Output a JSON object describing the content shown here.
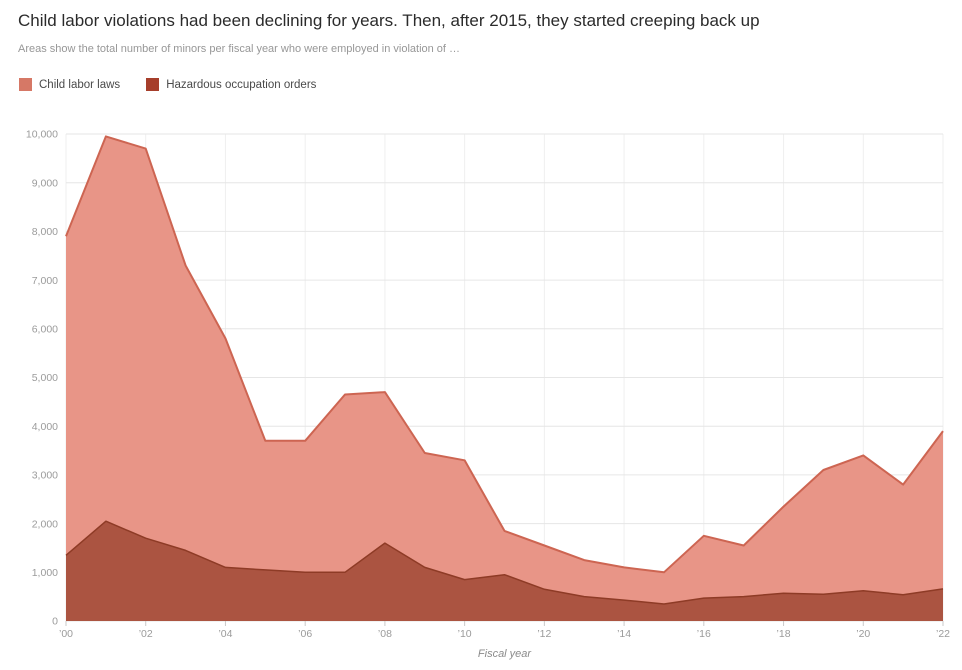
{
  "header": {
    "title": "Child labor violations had been declining for years. Then, after 2015, they started creeping back up",
    "subtitle": "Areas show the total number of minors per fiscal year who were employed in violation of …"
  },
  "legend": {
    "items": [
      {
        "label": "Child labor laws",
        "color": "#d67866"
      },
      {
        "label": "Hazardous occupation orders",
        "color": "#a63e2b"
      }
    ]
  },
  "chart_data": {
    "type": "area",
    "title": "Child labor violations had been declining for years. Then, after 2015, they started creeping back up",
    "subtitle": "Areas show the total number of minors per fiscal year who were employed in violation of …",
    "x": [
      2000,
      2001,
      2002,
      2003,
      2004,
      2005,
      2006,
      2007,
      2008,
      2009,
      2010,
      2011,
      2012,
      2013,
      2014,
      2015,
      2016,
      2017,
      2018,
      2019,
      2020,
      2021,
      2022
    ],
    "series": [
      {
        "name": "Child labor laws",
        "values": [
          7900,
          9950,
          9700,
          7300,
          5800,
          3700,
          3700,
          4650,
          4700,
          3450,
          3300,
          1850,
          1550,
          1250,
          1100,
          1000,
          1750,
          1550,
          2350,
          3100,
          3400,
          2800,
          3900
        ],
        "fill": "#e89587",
        "stroke": "#cd6552"
      },
      {
        "name": "Hazardous occupation orders",
        "values": [
          1350,
          2050,
          1700,
          1450,
          1100,
          1050,
          1000,
          1000,
          1600,
          1100,
          850,
          950,
          650,
          500,
          430,
          350,
          470,
          500,
          570,
          550,
          620,
          540,
          660
        ],
        "fill": "#ab5441",
        "stroke": "#8e3b26"
      }
    ],
    "xlabel": "Fiscal year",
    "ylabel": "",
    "ylim": [
      0,
      10000
    ],
    "grid": true,
    "legend_position": "top",
    "overlap_mode": "overlaid (not stacked)",
    "y_ticks": [
      {
        "v": 0,
        "label": "0"
      },
      {
        "v": 1000,
        "label": "1,000"
      },
      {
        "v": 2000,
        "label": "2,000"
      },
      {
        "v": 3000,
        "label": "3,000"
      },
      {
        "v": 4000,
        "label": "4,000"
      },
      {
        "v": 5000,
        "label": "5,000"
      },
      {
        "v": 6000,
        "label": "6,000"
      },
      {
        "v": 7000,
        "label": "7,000"
      },
      {
        "v": 8000,
        "label": "8,000"
      },
      {
        "v": 9000,
        "label": "9,000"
      },
      {
        "v": 10000,
        "label": "10,000"
      }
    ],
    "x_ticks": [
      {
        "year": 2000,
        "label": "’00"
      },
      {
        "year": 2002,
        "label": "’02"
      },
      {
        "year": 2004,
        "label": "’04"
      },
      {
        "year": 2006,
        "label": "’06"
      },
      {
        "year": 2008,
        "label": "’08"
      },
      {
        "year": 2010,
        "label": "’10"
      },
      {
        "year": 2012,
        "label": "’12"
      },
      {
        "year": 2014,
        "label": "’14"
      },
      {
        "year": 2016,
        "label": "’16"
      },
      {
        "year": 2018,
        "label": "’18"
      },
      {
        "year": 2020,
        "label": "’20"
      },
      {
        "year": 2022,
        "label": "’22"
      }
    ],
    "colors": {
      "grid_h": "#e6e6e6",
      "grid_v": "#efefef",
      "tick": "#c9c9c9",
      "axis_text": "#9b9b9b",
      "xlabel_text": "#8a8a8a"
    }
  }
}
